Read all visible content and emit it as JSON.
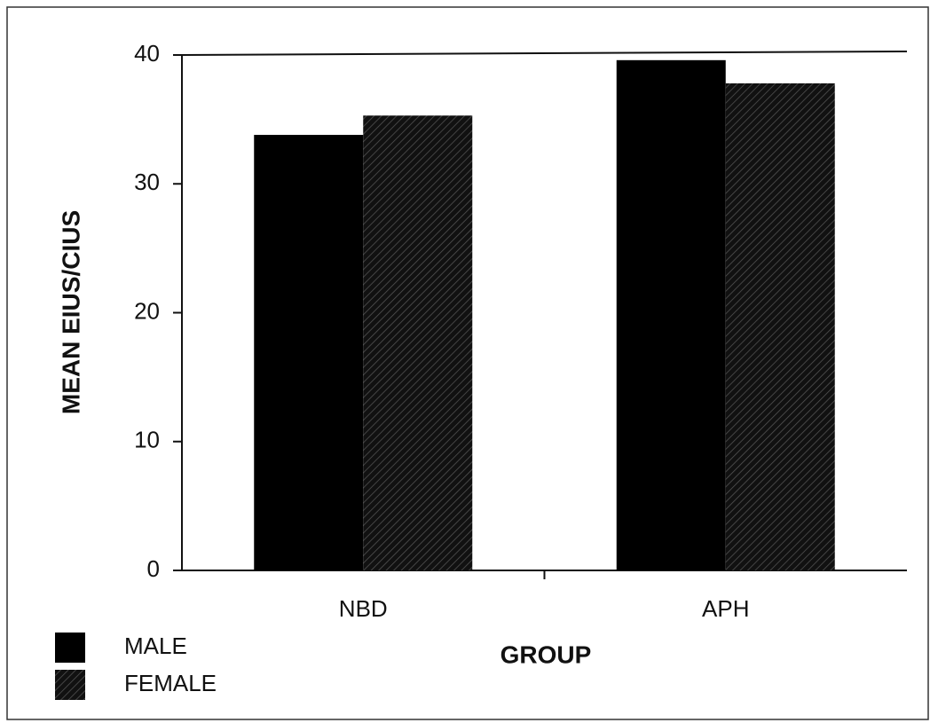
{
  "chart_data": {
    "type": "bar",
    "categories": [
      "NBD",
      "APH"
    ],
    "series": [
      {
        "name": "MALE",
        "color": "#000000",
        "values": [
          33.8,
          39.6
        ]
      },
      {
        "name": "FEMALE",
        "color": "#000000",
        "pattern": "hatch",
        "values": [
          35.3,
          37.8
        ]
      }
    ],
    "x_label": "GROUP",
    "y_label": "MEAN EIUS/CIUS",
    "ylim": [
      0,
      40
    ],
    "yticks": [
      0,
      10,
      20,
      30,
      40
    ],
    "grid": false,
    "legend": "lower left"
  }
}
